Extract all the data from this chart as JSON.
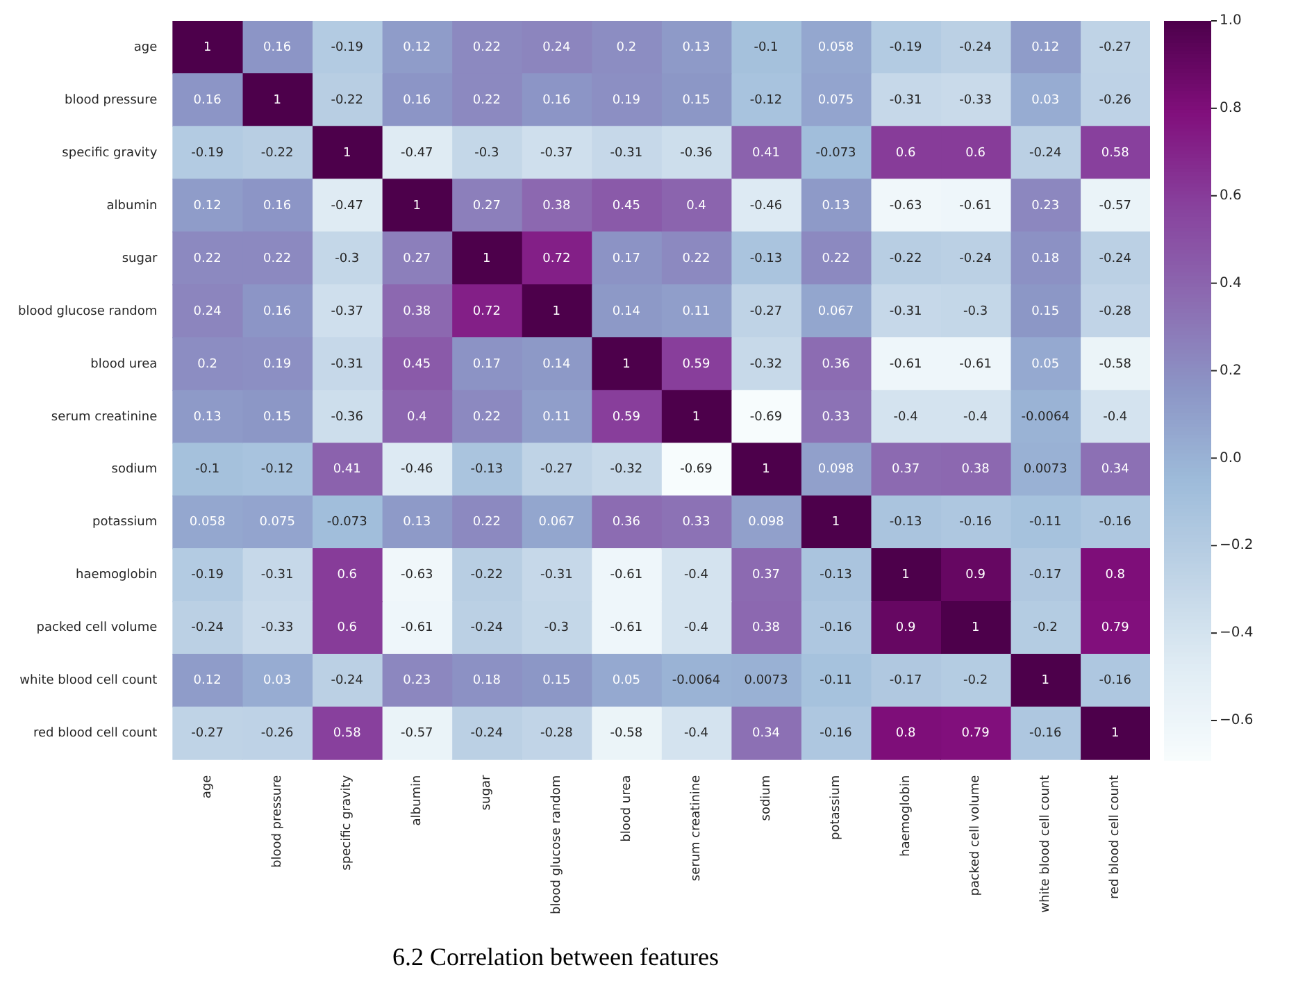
{
  "chart_data": {
    "type": "heatmap",
    "title": "6.2 Correlation between features",
    "categories": [
      "age",
      "blood pressure",
      "specific gravity",
      "albumin",
      "sugar",
      "blood glucose random",
      "blood urea",
      "serum creatinine",
      "sodium",
      "potassium",
      "haemoglobin",
      "packed cell volume",
      "white blood cell count",
      "red blood cell count"
    ],
    "y_categories": [
      "age",
      "blood pressure",
      "specific gravity",
      "albumin",
      "sugar",
      "blood glucose random",
      "blood urea",
      "serum creatinine",
      "sodium",
      "potassium",
      "haemoglobin",
      "packed cell volume",
      "white blood cell count",
      "red blood cell count"
    ],
    "cells": [
      [
        1,
        0.16,
        -0.19,
        0.12,
        0.22,
        0.24,
        0.2,
        0.13,
        -0.1,
        0.058,
        -0.19,
        -0.24,
        0.12,
        -0.27
      ],
      [
        0.16,
        1,
        -0.22,
        0.16,
        0.22,
        0.16,
        0.19,
        0.15,
        -0.12,
        0.075,
        -0.31,
        -0.33,
        0.03,
        -0.26
      ],
      [
        -0.19,
        -0.22,
        1,
        -0.47,
        -0.3,
        -0.37,
        -0.31,
        -0.36,
        0.41,
        -0.073,
        0.6,
        0.6,
        -0.24,
        0.58
      ],
      [
        0.12,
        0.16,
        -0.47,
        1,
        0.27,
        0.38,
        0.45,
        0.4,
        -0.46,
        0.13,
        -0.63,
        -0.61,
        0.23,
        -0.57
      ],
      [
        0.22,
        0.22,
        -0.3,
        0.27,
        1,
        0.72,
        0.17,
        0.22,
        -0.13,
        0.22,
        -0.22,
        -0.24,
        0.18,
        -0.24
      ],
      [
        0.24,
        0.16,
        -0.37,
        0.38,
        0.72,
        1,
        0.14,
        0.11,
        -0.27,
        0.067,
        -0.31,
        -0.3,
        0.15,
        -0.28
      ],
      [
        0.2,
        0.19,
        -0.31,
        0.45,
        0.17,
        0.14,
        1,
        0.59,
        -0.32,
        0.36,
        -0.61,
        -0.61,
        0.05,
        -0.58
      ],
      [
        0.13,
        0.15,
        -0.36,
        0.4,
        0.22,
        0.11,
        0.59,
        1,
        -0.69,
        0.33,
        -0.4,
        -0.4,
        -0.0064,
        -0.4
      ],
      [
        -0.1,
        -0.12,
        0.41,
        -0.46,
        -0.13,
        -0.27,
        -0.32,
        -0.69,
        1,
        0.098,
        0.37,
        0.38,
        0.0073,
        0.34
      ],
      [
        0.058,
        0.075,
        -0.073,
        0.13,
        0.22,
        0.067,
        0.36,
        0.33,
        0.098,
        1,
        -0.13,
        -0.16,
        -0.11,
        -0.16
      ],
      [
        -0.19,
        -0.31,
        0.6,
        -0.63,
        -0.22,
        -0.31,
        -0.61,
        -0.4,
        0.37,
        -0.13,
        1,
        0.9,
        -0.17,
        0.8
      ],
      [
        -0.24,
        -0.33,
        0.6,
        -0.61,
        -0.24,
        -0.3,
        -0.61,
        -0.4,
        0.38,
        -0.16,
        0.9,
        1,
        -0.2,
        0.79
      ],
      [
        0.12,
        0.03,
        -0.24,
        0.23,
        0.18,
        0.15,
        0.05,
        -0.0064,
        0.0073,
        -0.11,
        -0.17,
        -0.2,
        1,
        -0.16
      ],
      [
        -0.27,
        -0.26,
        0.58,
        -0.57,
        -0.24,
        -0.28,
        -0.58,
        -0.4,
        0.34,
        -0.16,
        0.8,
        0.79,
        -0.16,
        1
      ]
    ],
    "data_labels": true,
    "clim": [
      -0.69,
      1
    ],
    "cticks": [
      {
        "value": 1,
        "label": "1.0"
      },
      {
        "value": 0.8,
        "label": "0.8"
      },
      {
        "value": 0.6,
        "label": "0.6"
      },
      {
        "value": 0.4,
        "label": "0.4"
      },
      {
        "value": 0.2,
        "label": "0.2"
      },
      {
        "value": 0,
        "label": "0.0"
      },
      {
        "value": -0.2,
        "label": "−0.2"
      },
      {
        "value": -0.4,
        "label": "−0.4"
      },
      {
        "value": -0.6,
        "label": "−0.6"
      }
    ]
  }
}
